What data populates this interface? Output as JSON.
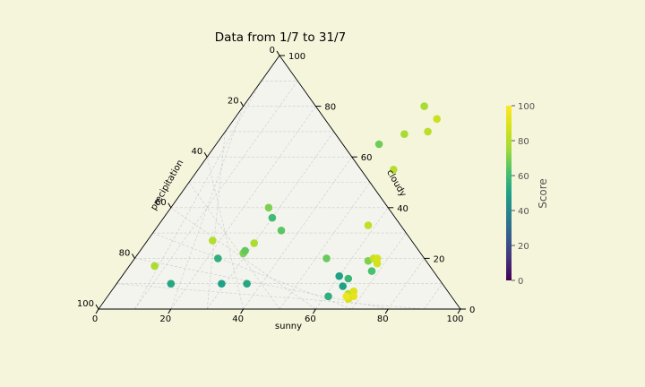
{
  "chart_data": {
    "type": "scatter",
    "subtype": "ternary",
    "title": "Data from 1/7 to 31/7",
    "axes": {
      "a_label": "precipitation",
      "b_label": "sunny",
      "c_label": "cloudy",
      "range": [
        0,
        100
      ],
      "tick_values": [
        0,
        20,
        40,
        60,
        80,
        100
      ],
      "tick_labels": [
        "0",
        "20",
        "40",
        "60",
        "80",
        "100"
      ]
    },
    "grid": true,
    "colorbar": {
      "label": "Score",
      "range": [
        0,
        100
      ],
      "ticks": [
        0,
        20,
        40,
        60,
        80,
        100
      ],
      "tick_labels": [
        "0",
        "20",
        "40",
        "60",
        "80",
        "100"
      ],
      "colormap": "viridis"
    },
    "points": [
      {
        "precipitation": 73,
        "sunny": 18,
        "cloudy": 9,
        "score": 80
      },
      {
        "precipitation": 83,
        "sunny": 7,
        "cloudy": 10,
        "score": 78
      },
      {
        "precipitation": 35,
        "sunny": 45,
        "cloudy": 20,
        "score": 68
      },
      {
        "precipitation": 60,
        "sunny": 27,
        "cloudy": 13,
        "score": 70
      },
      {
        "precipitation": 74,
        "sunny": 30,
        "cloudy": -4,
        "score": 78
      },
      {
        "precipitation": 64,
        "sunny": 30,
        "cloudy": 6,
        "score": 60
      },
      {
        "precipitation": 78,
        "sunny": 29,
        "cloudy": -7,
        "score": 70
      },
      {
        "precipitation": 77,
        "sunny": 29,
        "cloudy": -6,
        "score": 66
      },
      {
        "precipitation": 80,
        "sunny": 23,
        "cloudy": -3,
        "score": 55
      },
      {
        "precipitation": 69,
        "sunny": 35,
        "cloudy": -4,
        "score": 65
      },
      {
        "precipitation": 90,
        "sunny": 15,
        "cloudy": -5,
        "score": 52
      },
      {
        "precipitation": 90,
        "sunny": 29,
        "cloudy": -19,
        "score": 50
      },
      {
        "precipitation": 90,
        "sunny": 36,
        "cloudy": -26,
        "score": 52
      },
      {
        "precipitation": 80,
        "sunny": 53,
        "cloudy": -33,
        "score": 67
      },
      {
        "precipitation": 31,
        "sunny": 50,
        "cloudy": 19,
        "score": 77
      },
      {
        "precipitation": 20,
        "sunny": 50,
        "cloudy": 30,
        "score": 77
      },
      {
        "precipitation": 25,
        "sunny": 56,
        "cloudy": 19,
        "score": 85
      },
      {
        "precipitation": 30,
        "sunny": 56,
        "cloudy": 14,
        "score": 82
      },
      {
        "precipitation": 45,
        "sunny": 54,
        "cloudy": 1,
        "score": 80
      },
      {
        "precipitation": 67,
        "sunny": 58,
        "cloudy": -25,
        "score": 83
      },
      {
        "precipitation": 81,
        "sunny": 65,
        "cloudy": -46,
        "score": 70
      },
      {
        "precipitation": 88,
        "sunny": 63,
        "cloudy": -51,
        "score": 58
      },
      {
        "precipitation": 87,
        "sunny": 60,
        "cloudy": -47,
        "score": 50
      },
      {
        "precipitation": 85,
        "sunny": 68,
        "cloudy": -53,
        "score": 62
      },
      {
        "precipitation": 82,
        "sunny": 68,
        "cloudy": -50,
        "score": 87
      },
      {
        "precipitation": 80,
        "sunny": 66,
        "cloudy": -46,
        "score": 84
      },
      {
        "precipitation": 80,
        "sunny": 67,
        "cloudy": -47,
        "score": 88
      },
      {
        "precipitation": 91,
        "sunny": 63,
        "cloudy": -54,
        "score": 50
      },
      {
        "precipitation": 95,
        "sunny": 61,
        "cloudy": -56,
        "score": 55
      },
      {
        "precipitation": 94,
        "sunny": 66,
        "cloudy": -60,
        "score": 80
      },
      {
        "precipitation": 93,
        "sunny": 67,
        "cloudy": -60,
        "score": 90
      },
      {
        "precipitation": 95,
        "sunny": 68,
        "cloudy": -63,
        "score": 92
      },
      {
        "precipitation": 96,
        "sunny": 67,
        "cloudy": -63,
        "score": 89
      },
      {
        "precipitation": 95,
        "sunny": 66,
        "cloudy": -61,
        "score": 95
      }
    ]
  }
}
